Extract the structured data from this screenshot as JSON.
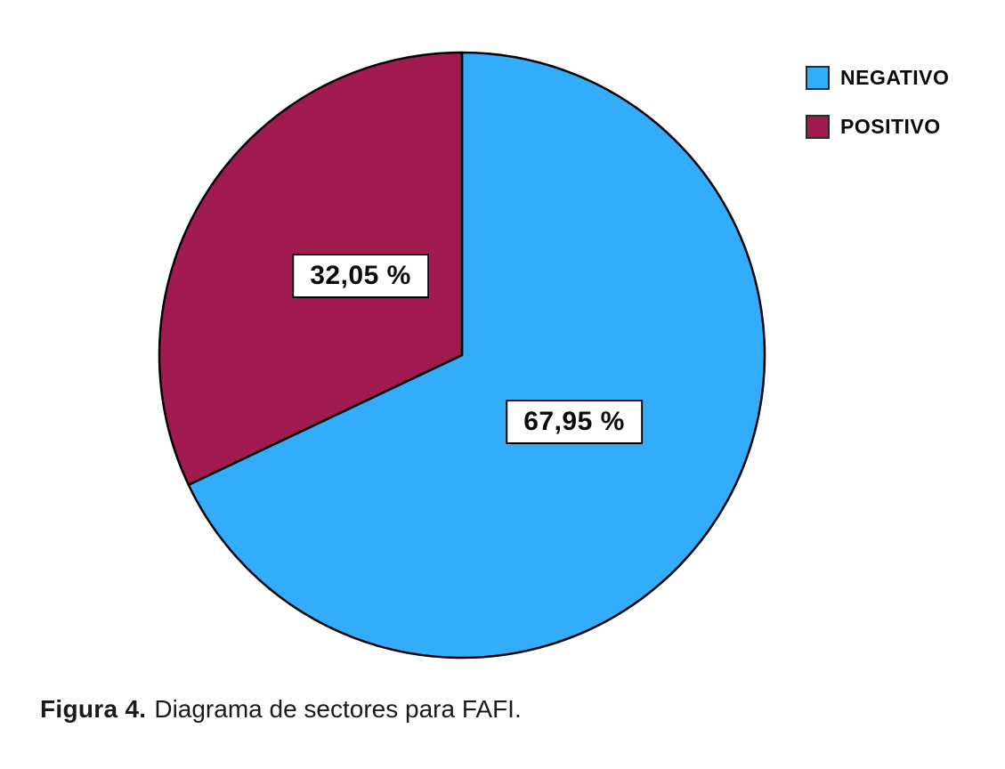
{
  "figure": {
    "caption": {
      "prefix": "Figura 4.",
      "text": "Diagrama de sectores para FAFI."
    }
  },
  "legend": {
    "position": "top-right",
    "items": [
      {
        "label": "NEGATIVO",
        "color": "#33ACFC"
      },
      {
        "label": "POSITIVO",
        "color": "#A11A50"
      }
    ]
  },
  "chart_data": {
    "type": "pie",
    "title": "",
    "categories": [
      "NEGATIVO",
      "POSITIVO"
    ],
    "values": [
      67.95,
      32.05
    ],
    "slice_labels": [
      "67,95 %",
      "32,05 %"
    ],
    "colors": [
      "#33ACFC",
      "#A11A50"
    ],
    "start_angle_deg": 0,
    "direction": "clockwise",
    "stroke_color": "#000000",
    "legend_position": "top-right"
  },
  "colors": {
    "caption_accent": "#1E7EB3",
    "background": "#FFFFFF"
  }
}
